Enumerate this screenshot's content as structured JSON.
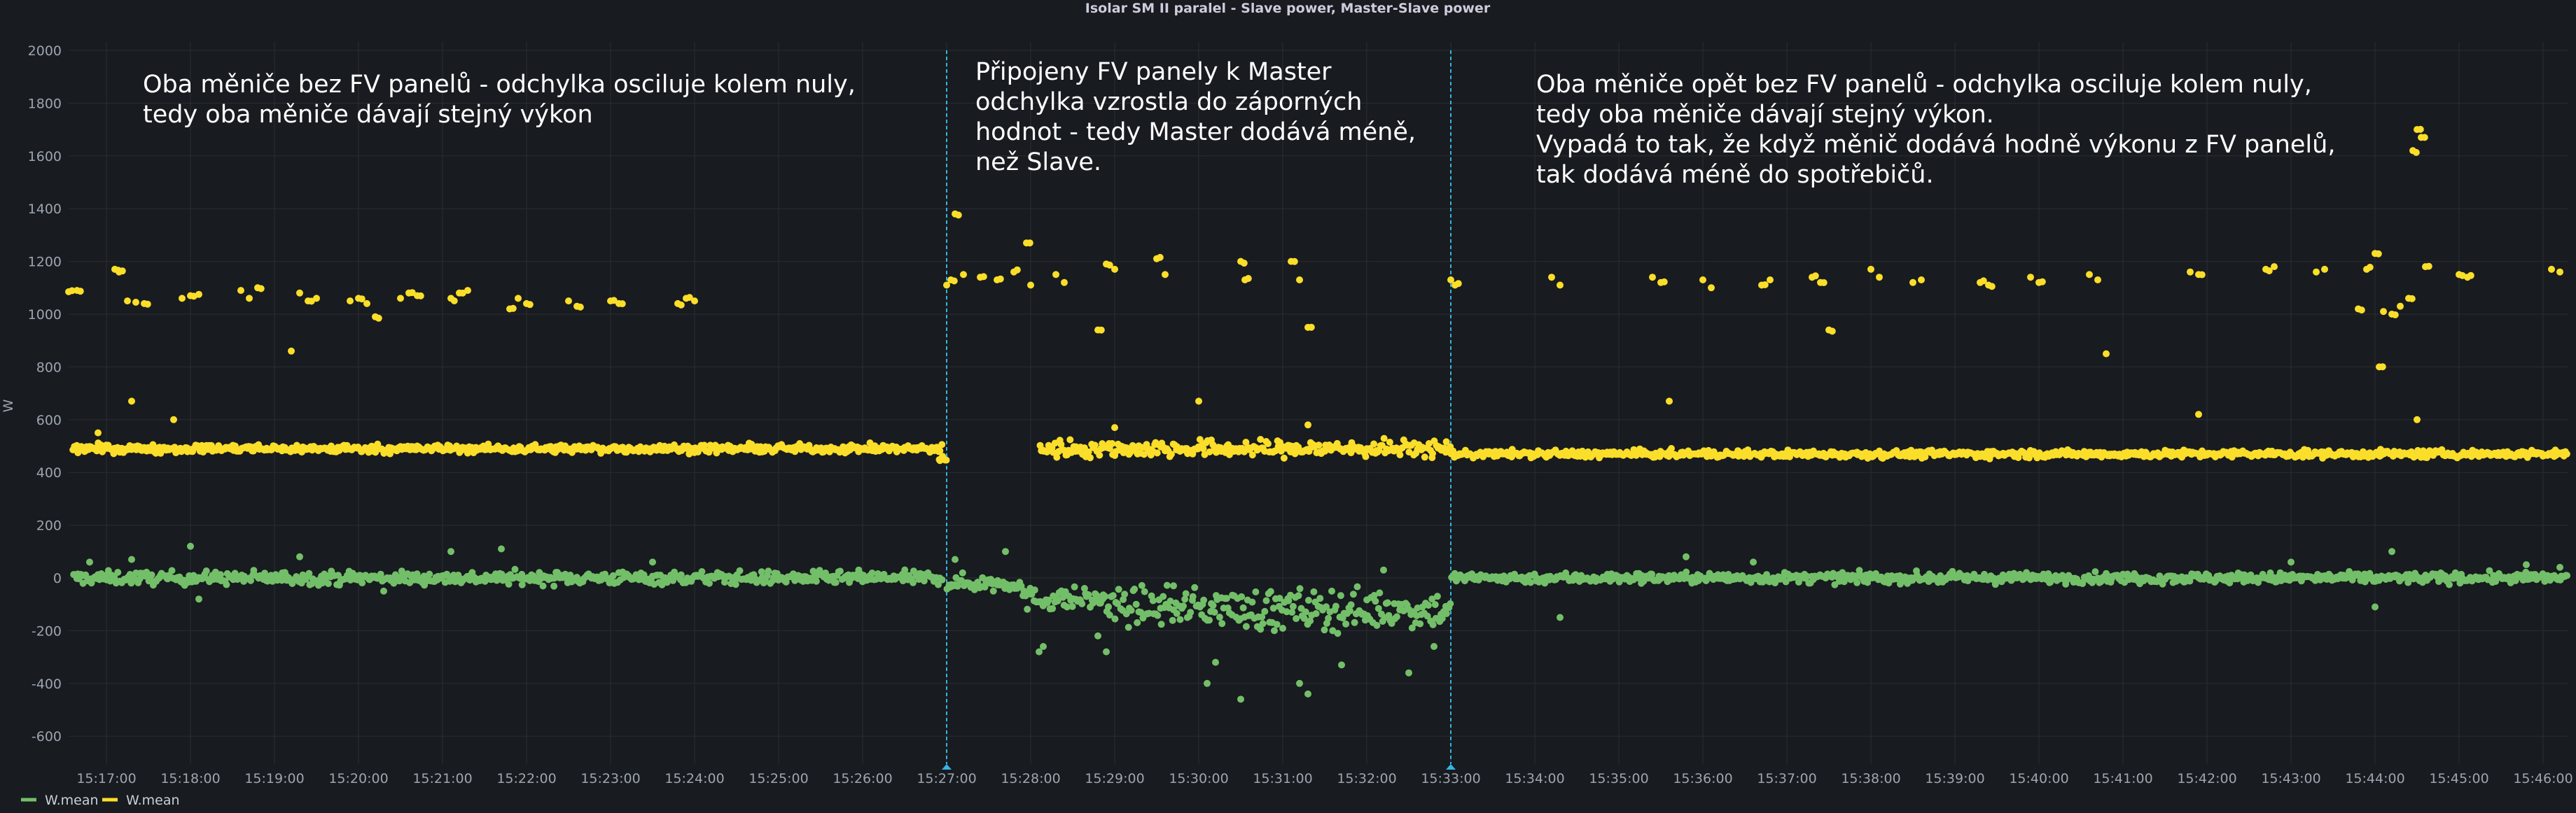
{
  "chart_data": {
    "type": "scatter",
    "title": "Isolar SM II paralel - Slave power, Master-Slave power",
    "ylabel": "W",
    "ylim": [
      -700,
      2000
    ],
    "yticks": [
      -600,
      -400,
      -200,
      0,
      200,
      400,
      600,
      800,
      1000,
      1200,
      1400,
      1600,
      1800,
      2000
    ],
    "x_start_min": 16.55,
    "x_end_min": 46.3,
    "xticks": [
      {
        "min": 17,
        "label": "15:17:00"
      },
      {
        "min": 18,
        "label": "15:18:00"
      },
      {
        "min": 19,
        "label": "15:19:00"
      },
      {
        "min": 20,
        "label": "15:20:00"
      },
      {
        "min": 21,
        "label": "15:21:00"
      },
      {
        "min": 22,
        "label": "15:22:00"
      },
      {
        "min": 23,
        "label": "15:23:00"
      },
      {
        "min": 24,
        "label": "15:24:00"
      },
      {
        "min": 25,
        "label": "15:25:00"
      },
      {
        "min": 26,
        "label": "15:26:00"
      },
      {
        "min": 27,
        "label": "15:27:00"
      },
      {
        "min": 28,
        "label": "15:28:00"
      },
      {
        "min": 29,
        "label": "15:29:00"
      },
      {
        "min": 30,
        "label": "15:30:00"
      },
      {
        "min": 31,
        "label": "15:31:00"
      },
      {
        "min": 32,
        "label": "15:32:00"
      },
      {
        "min": 33,
        "label": "15:33:00"
      },
      {
        "min": 34,
        "label": "15:34:00"
      },
      {
        "min": 35,
        "label": "15:35:00"
      },
      {
        "min": 36,
        "label": "15:36:00"
      },
      {
        "min": 37,
        "label": "15:37:00"
      },
      {
        "min": 38,
        "label": "15:38:00"
      },
      {
        "min": 39,
        "label": "15:39:00"
      },
      {
        "min": 40,
        "label": "15:40:00"
      },
      {
        "min": 41,
        "label": "15:41:00"
      },
      {
        "min": 42,
        "label": "15:42:00"
      },
      {
        "min": 43,
        "label": "15:43:00"
      },
      {
        "min": 44,
        "label": "15:44:00"
      },
      {
        "min": 45,
        "label": "15:45:00"
      },
      {
        "min": 46,
        "label": "15:46:00"
      }
    ],
    "markers": [
      27.0,
      33.0
    ],
    "marker_color": "#33b5e5",
    "series": [
      {
        "name": "W.mean",
        "color": "#73bf69",
        "description": "Master-Slave power difference",
        "segments": [
          {
            "from": 16.6,
            "to": 26.95,
            "center": 0,
            "spread": 35,
            "outliers": [
              [
                16.8,
                60
              ],
              [
                17.3,
                70
              ],
              [
                18.0,
                120
              ],
              [
                18.1,
                -80
              ],
              [
                19.3,
                80
              ],
              [
                21.1,
                100
              ],
              [
                21.7,
                110
              ],
              [
                20.3,
                -50
              ],
              [
                23.5,
                60
              ]
            ]
          },
          {
            "from": 27.0,
            "to": 27.9,
            "center": -20,
            "spread": 45,
            "outliers": [
              [
                27.1,
                70
              ],
              [
                27.7,
                100
              ]
            ]
          },
          {
            "from": 27.9,
            "to": 28.9,
            "center": -80,
            "spread": 60,
            "outliers": [
              [
                28.1,
                -280
              ],
              [
                28.15,
                -260
              ],
              [
                28.8,
                -220
              ],
              [
                28.9,
                -280
              ]
            ]
          },
          {
            "from": 28.9,
            "to": 30.4,
            "center": -110,
            "spread": 95,
            "outliers": [
              [
                30.1,
                -400
              ],
              [
                30.2,
                -320
              ],
              [
                30.5,
                -460
              ],
              [
                29.7,
                -30
              ]
            ]
          },
          {
            "from": 30.4,
            "to": 31.9,
            "center": -120,
            "spread": 110,
            "outliers": [
              [
                30.9,
                -200
              ],
              [
                31.3,
                -440
              ],
              [
                31.2,
                -400
              ],
              [
                31.7,
                -330
              ]
            ]
          },
          {
            "from": 31.9,
            "to": 33.0,
            "center": -120,
            "spread": 100,
            "outliers": [
              [
                32.5,
                -360
              ],
              [
                32.8,
                -260
              ],
              [
                32.2,
                30
              ]
            ]
          },
          {
            "from": 33.0,
            "to": 46.3,
            "center": 0,
            "spread": 28,
            "outliers": [
              [
                34.3,
                -150
              ],
              [
                35.8,
                80
              ],
              [
                36.6,
                60
              ],
              [
                43.0,
                60
              ],
              [
                44.0,
                -110
              ],
              [
                44.2,
                100
              ],
              [
                45.8,
                50
              ],
              [
                46.2,
                40
              ]
            ]
          }
        ]
      },
      {
        "name": "W.mean",
        "color": "#fade2a",
        "description": "Slave power",
        "segments": [
          {
            "from": 16.6,
            "to": 26.95,
            "center": 490,
            "spread": 22,
            "outliers": [
              [
                16.9,
                550
              ],
              [
                17.3,
                670
              ],
              [
                17.8,
                600
              ],
              [
                19.2,
                860
              ]
            ]
          },
          {
            "from": 26.9,
            "to": 27.0,
            "center": 450,
            "spread": 20,
            "outliers": []
          },
          {
            "from": 28.1,
            "to": 33.0,
            "center": 490,
            "spread": 45,
            "outliers": [
              [
                30.0,
                670
              ],
              [
                29.0,
                570
              ],
              [
                31.3,
                580
              ]
            ]
          },
          {
            "from": 33.0,
            "to": 46.3,
            "center": 470,
            "spread": 20,
            "outliers": [
              [
                35.6,
                670
              ],
              [
                41.9,
                620
              ],
              [
                44.5,
                600
              ]
            ]
          }
        ],
        "upper_clusters": [
          [
            16.55,
            1085
          ],
          [
            16.65,
            1090
          ],
          [
            17.1,
            1170
          ],
          [
            17.15,
            1160
          ],
          [
            17.25,
            1050
          ],
          [
            17.35,
            1045
          ],
          [
            17.45,
            1040
          ],
          [
            17.9,
            1060
          ],
          [
            18.0,
            1070
          ],
          [
            18.1,
            1075
          ],
          [
            18.6,
            1090
          ],
          [
            18.7,
            1060
          ],
          [
            18.8,
            1100
          ],
          [
            19.3,
            1080
          ],
          [
            19.4,
            1050
          ],
          [
            19.5,
            1060
          ],
          [
            19.9,
            1050
          ],
          [
            20.0,
            1060
          ],
          [
            20.1,
            1040
          ],
          [
            20.2,
            990
          ],
          [
            20.5,
            1060
          ],
          [
            20.6,
            1080
          ],
          [
            20.7,
            1070
          ],
          [
            21.1,
            1060
          ],
          [
            21.2,
            1080
          ],
          [
            21.3,
            1090
          ],
          [
            21.8,
            1020
          ],
          [
            21.9,
            1060
          ],
          [
            22.0,
            1040
          ],
          [
            22.5,
            1050
          ],
          [
            22.6,
            1030
          ],
          [
            23.0,
            1050
          ],
          [
            23.1,
            1040
          ],
          [
            23.8,
            1040
          ],
          [
            23.9,
            1060
          ],
          [
            24.0,
            1050
          ],
          [
            27.0,
            1110
          ],
          [
            27.05,
            1130
          ],
          [
            27.1,
            1380
          ],
          [
            27.2,
            1150
          ],
          [
            27.4,
            1140
          ],
          [
            27.6,
            1130
          ],
          [
            27.8,
            1160
          ],
          [
            27.95,
            1270
          ],
          [
            28.0,
            1110
          ],
          [
            28.3,
            1150
          ],
          [
            28.4,
            1120
          ],
          [
            28.8,
            940
          ],
          [
            28.9,
            1190
          ],
          [
            29.0,
            1170
          ],
          [
            29.5,
            1210
          ],
          [
            29.6,
            1150
          ],
          [
            30.5,
            1200
          ],
          [
            30.55,
            1130
          ],
          [
            31.1,
            1200
          ],
          [
            31.2,
            1130
          ],
          [
            31.3,
            950
          ],
          [
            33.0,
            1130
          ],
          [
            33.05,
            1110
          ],
          [
            34.2,
            1140
          ],
          [
            34.3,
            1110
          ],
          [
            35.4,
            1140
          ],
          [
            35.5,
            1120
          ],
          [
            36.0,
            1130
          ],
          [
            36.1,
            1100
          ],
          [
            36.7,
            1110
          ],
          [
            36.8,
            1130
          ],
          [
            37.3,
            1140
          ],
          [
            37.4,
            1120
          ],
          [
            37.5,
            940
          ],
          [
            38.0,
            1170
          ],
          [
            38.1,
            1140
          ],
          [
            38.5,
            1120
          ],
          [
            38.6,
            1130
          ],
          [
            39.3,
            1120
          ],
          [
            39.4,
            1110
          ],
          [
            39.9,
            1140
          ],
          [
            40.0,
            1120
          ],
          [
            40.6,
            1150
          ],
          [
            40.7,
            1130
          ],
          [
            40.8,
            850
          ],
          [
            41.8,
            1160
          ],
          [
            41.9,
            1150
          ],
          [
            42.7,
            1170
          ],
          [
            42.8,
            1180
          ],
          [
            43.3,
            1160
          ],
          [
            43.4,
            1170
          ],
          [
            43.8,
            1020
          ],
          [
            43.9,
            1170
          ],
          [
            44.0,
            1230
          ],
          [
            44.05,
            800
          ],
          [
            44.1,
            1010
          ],
          [
            44.2,
            1000
          ],
          [
            44.3,
            1030
          ],
          [
            44.4,
            1060
          ],
          [
            44.45,
            1620
          ],
          [
            44.5,
            1700
          ],
          [
            44.55,
            1670
          ],
          [
            44.6,
            1180
          ],
          [
            45.0,
            1150
          ],
          [
            45.1,
            1140
          ],
          [
            46.1,
            1170
          ],
          [
            46.2,
            1160
          ]
        ]
      }
    ],
    "annotations": [
      {
        "lines": [
          "Oba měniče bez FV panelů - odchylka osciluje kolem nuly,",
          "tedy oba měniče dávají stejný výkon"
        ]
      },
      {
        "lines": [
          "Připojeny FV panely k Master",
          "odchylka vzrostla do záporných",
          "hodnot - tedy Master dodává méně,",
          "než Slave."
        ]
      },
      {
        "lines": [
          "Oba měniče opět bez FV panelů - odchylka osciluje kolem nuly,",
          "tedy oba měniče dávají stejný výkon.",
          "Vypadá to tak, že když měnič dodává hodně výkonu z FV panelů,",
          "tak dodává méně do spotřebičů."
        ]
      }
    ],
    "legend": [
      {
        "label": "W.mean",
        "color": "#73bf69"
      },
      {
        "label": "W.mean",
        "color": "#fade2a"
      }
    ],
    "legend_position": "bottom-left",
    "grid": true
  }
}
